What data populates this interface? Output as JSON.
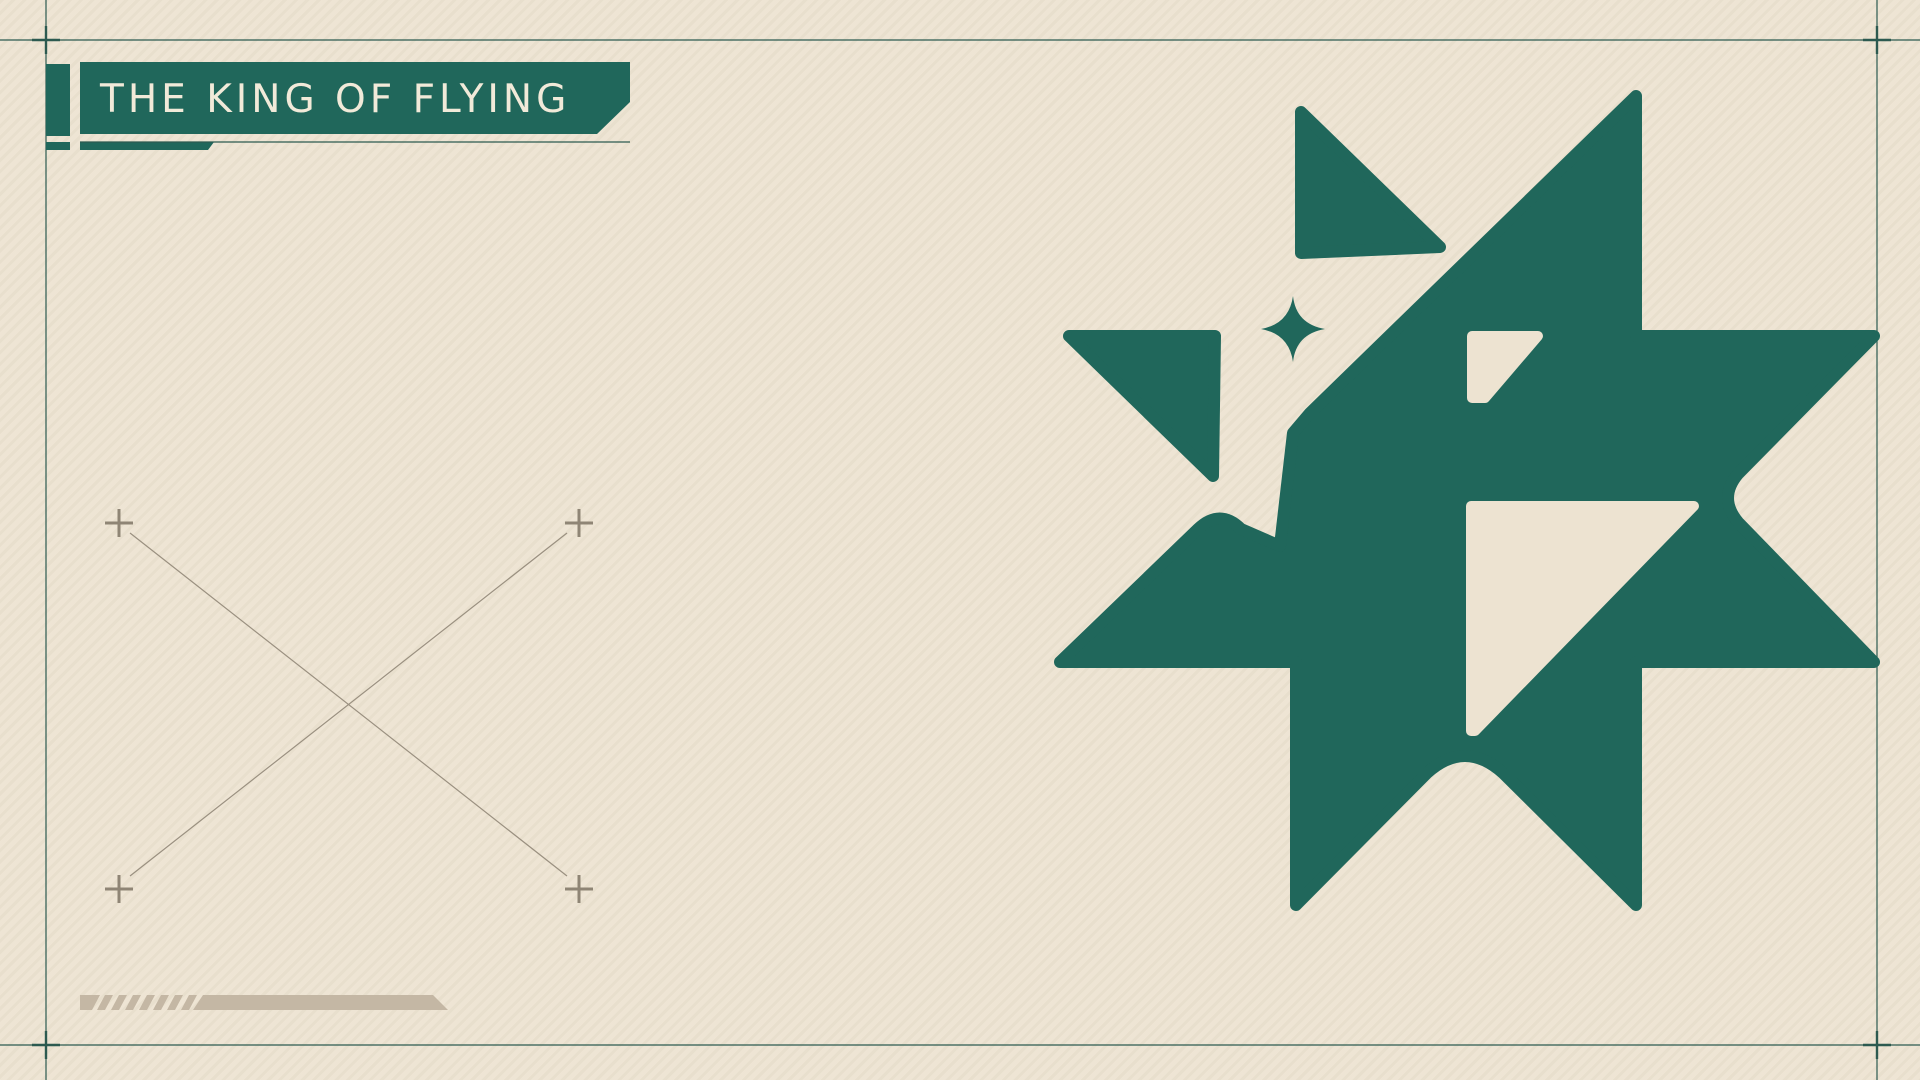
{
  "screen": {
    "title": "THE KING OF FLYING"
  },
  "colors": {
    "background": "#ede3d1",
    "accent": "#20675b",
    "frame_line": "#2c5a50",
    "muted": "#8f8575",
    "loadbar": "#c4b7a4"
  },
  "icons": {
    "logo": "four-point-star-emblem-icon",
    "sparkle": "sparkle-icon",
    "crosshair": "plus-crosshair-icon"
  }
}
